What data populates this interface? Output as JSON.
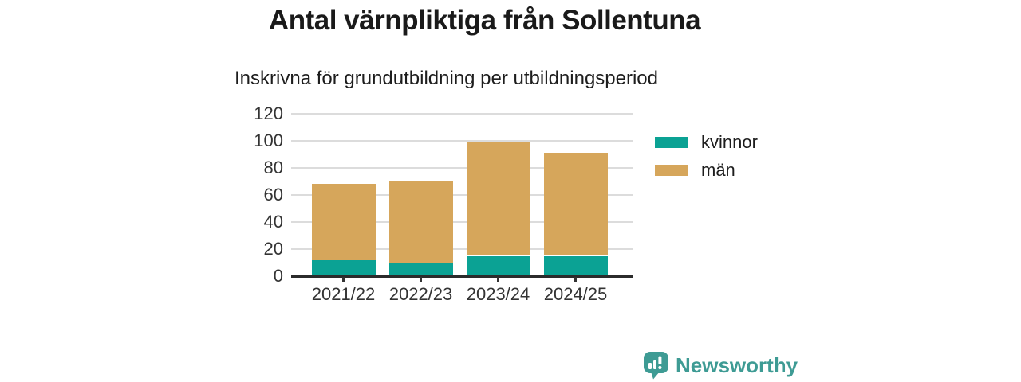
{
  "title": "Antal värnpliktiga från Sollentuna",
  "subtitle": "Inskrivna för grundutbildning per utbildningsperiod",
  "chart_data": {
    "type": "bar",
    "stacked": true,
    "title": "Antal värnpliktiga från Sollentuna",
    "subtitle": "Inskrivna för grundutbildning per utbildningsperiod",
    "categories": [
      "2021/22",
      "2022/23",
      "2023/24",
      "2024/25"
    ],
    "series": [
      {
        "name": "kvinnor",
        "color": "#0ba294",
        "values": [
          12,
          10,
          15,
          15
        ]
      },
      {
        "name": "män",
        "color": "#d6a65b",
        "values": [
          56,
          60,
          84,
          76
        ]
      }
    ],
    "stack_totals": [
      68,
      70,
      99,
      91
    ],
    "xlabel": "",
    "ylabel": "",
    "ylim": [
      0,
      120
    ],
    "yticks": [
      0,
      20,
      40,
      60,
      80,
      100,
      120
    ],
    "grid": "horizontal",
    "legend_position": "right"
  },
  "colors": {
    "kvinnor": "#0ba294",
    "man": "#d6a65b",
    "grid": "#dcdcdc",
    "axis": "#2b2b2b",
    "text_dark": "#1a1a1a",
    "tick_text": "#333333",
    "brand_teal": "#3e9b94"
  },
  "branding": {
    "logo_text": "Newsworthy",
    "logo_icon": "bar-chart-speech-bubble-icon",
    "logo_color": "#3e9b94"
  }
}
